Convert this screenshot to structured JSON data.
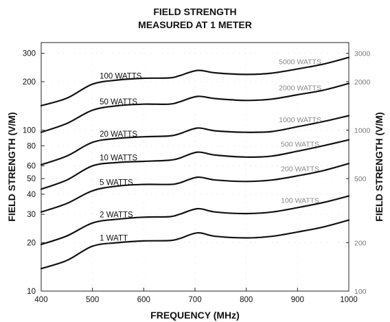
{
  "chart_data": {
    "type": "line",
    "title_lines": [
      "FIELD STRENGTH",
      "MEASURED AT 1 METER"
    ],
    "xlabel": "FREQUENCY (MHz)",
    "ylabel": "FIELD STRENGTH  (V/M)",
    "ylabel_right": "FIELD STRENGTH (V/M)",
    "x_scale": "linear",
    "y_scale": "log",
    "xlim": [
      400,
      1000
    ],
    "ylim": [
      10,
      350
    ],
    "ylim_right": [
      100,
      3500
    ],
    "x_ticks": [
      "400",
      "500",
      "600",
      "700",
      "800",
      "900",
      "1000"
    ],
    "y_ticks": [
      "10",
      "20",
      "30",
      "40",
      "50",
      "60",
      "80",
      "100",
      "200",
      "300"
    ],
    "y_ticks_right": [
      "100",
      "200",
      "500",
      "1000",
      "2000",
      "3000"
    ],
    "grid": "dotted",
    "x": [
      400,
      450,
      500,
      550,
      600,
      650,
      670,
      705,
      740,
      800,
      850,
      900,
      950,
      1000
    ],
    "series": [
      {
        "name": "100 WATTS",
        "label_right": "5000 WATTS",
        "values": [
          142,
          158,
          193,
          205,
          210,
          211,
          218,
          235,
          227,
          222,
          226,
          240,
          257,
          283
        ]
      },
      {
        "name": "50 WATTS",
        "label_right": "2000 WATTS",
        "values": [
          97,
          110,
          133,
          142,
          145,
          145,
          150,
          162,
          157,
          153,
          156,
          166,
          177,
          195
        ]
      },
      {
        "name": "20 WATTS",
        "label_right": "1000 WATTS",
        "values": [
          61,
          69,
          84,
          89,
          91,
          92,
          95,
          103,
          99,
          97,
          98,
          105,
          113,
          123
        ]
      },
      {
        "name": "10 WATTS",
        "label_right": "500 WATTS",
        "values": [
          43,
          49,
          60,
          63,
          64,
          65,
          67,
          73,
          70,
          68,
          69,
          74,
          80,
          87
        ]
      },
      {
        "name": "5 WATTS",
        "label_right": "200 WATTS",
        "values": [
          31,
          35,
          42,
          45,
          46,
          46,
          47,
          51,
          49,
          48,
          49,
          52,
          56,
          62
        ]
      },
      {
        "name": "2 WATTS",
        "label_right": "100 WATTS",
        "values": [
          19.5,
          22,
          26.5,
          28,
          28.8,
          29,
          30,
          32.5,
          31,
          30.3,
          31,
          33,
          35.5,
          39
        ]
      },
      {
        "name": "1 WATT",
        "values": [
          13.8,
          15.5,
          19,
          20,
          20.5,
          20.6,
          21.2,
          23,
          21.9,
          21.4,
          21.9,
          23.3,
          25,
          27.6
        ]
      }
    ]
  }
}
